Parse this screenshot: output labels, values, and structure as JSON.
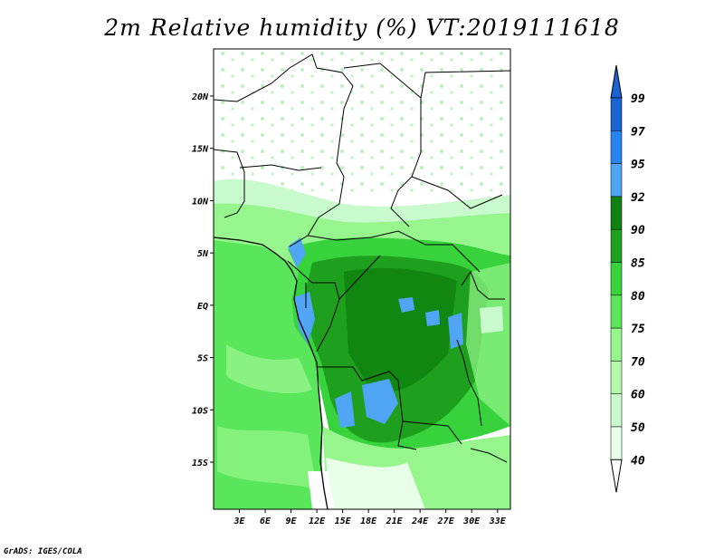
{
  "title": "2m Relative humidity (%) VT:2019111618",
  "credit": "GrADS: IGES/COLA",
  "map": {
    "lat_range": [
      -19.5,
      24.5
    ],
    "lon_range": [
      0,
      34.5
    ],
    "lat_ticks": [
      {
        "value": 20,
        "label": "20N"
      },
      {
        "value": 15,
        "label": "15N"
      },
      {
        "value": 10,
        "label": "10N"
      },
      {
        "value": 5,
        "label": "5N"
      },
      {
        "value": 0,
        "label": "EQ"
      },
      {
        "value": -5,
        "label": "5S"
      },
      {
        "value": -10,
        "label": "10S"
      },
      {
        "value": -15,
        "label": "15S"
      }
    ],
    "lon_ticks": [
      {
        "value": 3,
        "label": "3E"
      },
      {
        "value": 6,
        "label": "6E"
      },
      {
        "value": 9,
        "label": "9E"
      },
      {
        "value": 12,
        "label": "12E"
      },
      {
        "value": 15,
        "label": "15E"
      },
      {
        "value": 18,
        "label": "18E"
      },
      {
        "value": 21,
        "label": "21E"
      },
      {
        "value": 24,
        "label": "24E"
      },
      {
        "value": 27,
        "label": "27E"
      },
      {
        "value": 30,
        "label": "30E"
      },
      {
        "value": 33,
        "label": "33E"
      }
    ]
  },
  "colorbar": {
    "levels": [
      "99",
      "97",
      "95",
      "92",
      "90",
      "85",
      "80",
      "75",
      "70",
      "60",
      "50",
      "40"
    ],
    "colors": [
      "#1c64d2",
      "#2882f0",
      "#50a5f5",
      "#0f820f",
      "#1ea01e",
      "#37d23c",
      "#5ae65a",
      "#96f58c",
      "#b4faaa",
      "#c8facd",
      "#e6ffe6",
      "#ffffff"
    ],
    "top_arrow_color": "#1c64d2",
    "bottom_arrow_color": "#ffffff"
  }
}
